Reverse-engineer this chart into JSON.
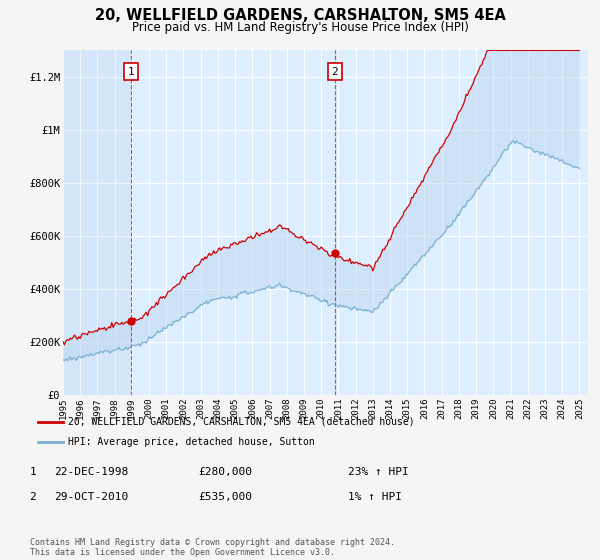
{
  "title": "20, WELLFIELD GARDENS, CARSHALTON, SM5 4EA",
  "subtitle": "Price paid vs. HM Land Registry's House Price Index (HPI)",
  "legend_line1": "20, WELLFIELD GARDENS, CARSHALTON, SM5 4EA (detached house)",
  "legend_line2": "HPI: Average price, detached house, Sutton",
  "annotation1_label": "1",
  "annotation1_date": "22-DEC-1998",
  "annotation1_price": "£280,000",
  "annotation1_hpi": "23% ↑ HPI",
  "annotation2_label": "2",
  "annotation2_date": "29-OCT-2010",
  "annotation2_price": "£535,000",
  "annotation2_hpi": "1% ↑ HPI",
  "footer": "Contains HM Land Registry data © Crown copyright and database right 2024.\nThis data is licensed under the Open Government Licence v3.0.",
  "hpi_color": "#a8c8e8",
  "price_color": "#cc0000",
  "fill_color": "#ddeeff",
  "ylim": [
    0,
    1300000
  ],
  "yticks": [
    0,
    200000,
    400000,
    600000,
    800000,
    1000000,
    1200000
  ],
  "ytick_labels": [
    "£0",
    "£200K",
    "£400K",
    "£600K",
    "£800K",
    "£1M",
    "£1.2M"
  ],
  "background_color": "#f5f5f5",
  "plot_background": "#ddeeff"
}
